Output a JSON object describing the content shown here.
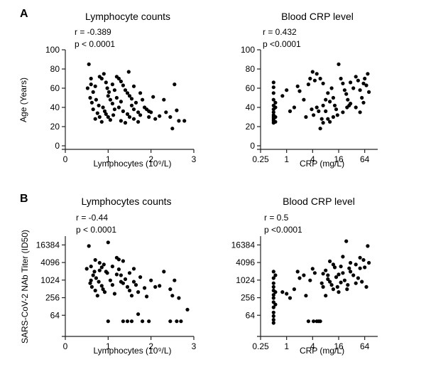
{
  "panels": {
    "A": {
      "label": "A"
    },
    "B": {
      "label": "B"
    }
  },
  "chart_data": [
    {
      "id": "A-left",
      "panel": "A",
      "type": "scatter",
      "title": "Lymphocyte counts",
      "xlabel": "Lymphocytes (10⁹/L)",
      "ylabel": "Age (Years)",
      "xscale": "linear",
      "yscale": "linear",
      "xlim": [
        0,
        3
      ],
      "ylim": [
        0,
        100
      ],
      "xticks": [
        0,
        1,
        2,
        3
      ],
      "xticklabels": [
        "0",
        "1",
        "2",
        "3"
      ],
      "yticks": [
        0,
        20,
        40,
        60,
        80,
        100
      ],
      "yticklabels": [
        "0",
        "20",
        "40",
        "60",
        "80",
        "100"
      ],
      "stats": {
        "r": "r = -0.389",
        "p": "p < 0.0001"
      },
      "points": [
        [
          0.55,
          85
        ],
        [
          0.52,
          60
        ],
        [
          0.6,
          64
        ],
        [
          0.65,
          56
        ],
        [
          0.7,
          62
        ],
        [
          0.58,
          50
        ],
        [
          0.62,
          45
        ],
        [
          0.72,
          48
        ],
        [
          0.78,
          42
        ],
        [
          0.8,
          72
        ],
        [
          0.85,
          70
        ],
        [
          0.9,
          75
        ],
        [
          0.95,
          66
        ],
        [
          0.98,
          60
        ],
        [
          1.02,
          56
        ],
        [
          1.05,
          48
        ],
        [
          0.88,
          40
        ],
        [
          0.92,
          36
        ],
        [
          1.1,
          44
        ],
        [
          1.15,
          38
        ],
        [
          0.75,
          34
        ],
        [
          0.7,
          28
        ],
        [
          0.8,
          30
        ],
        [
          0.85,
          25
        ],
        [
          0.95,
          33
        ],
        [
          1.0,
          30
        ],
        [
          1.05,
          27
        ],
        [
          1.12,
          32
        ],
        [
          1.2,
          72
        ],
        [
          1.25,
          70
        ],
        [
          1.3,
          67
        ],
        [
          1.35,
          63
        ],
        [
          1.4,
          58
        ],
        [
          1.45,
          55
        ],
        [
          1.5,
          52
        ],
        [
          1.55,
          49
        ],
        [
          1.25,
          40
        ],
        [
          1.35,
          36
        ],
        [
          1.45,
          33
        ],
        [
          1.5,
          30
        ],
        [
          1.55,
          42
        ],
        [
          1.6,
          38
        ],
        [
          1.65,
          45
        ],
        [
          1.7,
          35
        ],
        [
          1.75,
          32
        ],
        [
          1.85,
          40
        ],
        [
          1.9,
          38
        ],
        [
          1.95,
          30
        ],
        [
          2.05,
          51
        ],
        [
          2.1,
          28
        ],
        [
          2.3,
          48
        ],
        [
          2.35,
          35
        ],
        [
          2.5,
          18
        ],
        [
          2.45,
          30
        ],
        [
          2.55,
          64
        ],
        [
          2.6,
          37
        ],
        [
          2.65,
          26
        ],
        [
          2.78,
          26
        ],
        [
          1.48,
          77
        ],
        [
          1.3,
          46
        ],
        [
          1.6,
          62
        ],
        [
          1.75,
          55
        ],
        [
          1.8,
          48
        ],
        [
          1.95,
          36
        ],
        [
          2.0,
          35
        ],
        [
          0.6,
          70
        ],
        [
          0.65,
          38
        ],
        [
          1.0,
          52
        ],
        [
          1.1,
          64
        ],
        [
          1.15,
          58
        ],
        [
          1.2,
          50
        ],
        [
          1.3,
          26
        ],
        [
          1.4,
          24
        ],
        [
          1.6,
          28
        ],
        [
          1.7,
          25
        ],
        [
          2.2,
          31
        ]
      ]
    },
    {
      "id": "A-right",
      "panel": "A",
      "type": "scatter",
      "title": "Blood CRP level",
      "xlabel": "CRP (mg/L)",
      "ylabel": "",
      "xscale": "log2",
      "yscale": "linear",
      "xlim": [
        0.25,
        128
      ],
      "ylim": [
        0,
        100
      ],
      "xticks": [
        0.25,
        1,
        4,
        16,
        64
      ],
      "xticklabels": [
        "0.25",
        "1",
        "4",
        "16",
        "64"
      ],
      "yticks": [
        0,
        20,
        40,
        60,
        80,
        100
      ],
      "yticklabels": [
        "0",
        "20",
        "40",
        "60",
        "80",
        "100"
      ],
      "stats": {
        "r": "r = 0.432",
        "p": "p <0.0001"
      },
      "points": [
        [
          0.5,
          66
        ],
        [
          0.5,
          61
        ],
        [
          0.5,
          55
        ],
        [
          0.5,
          48
        ],
        [
          0.5,
          42
        ],
        [
          0.5,
          38
        ],
        [
          0.5,
          35
        ],
        [
          0.5,
          32
        ],
        [
          0.5,
          30
        ],
        [
          0.5,
          28
        ],
        [
          0.5,
          26
        ],
        [
          0.5,
          24
        ],
        [
          0.55,
          45
        ],
        [
          0.55,
          40
        ],
        [
          0.55,
          30
        ],
        [
          0.55,
          25
        ],
        [
          0.8,
          52
        ],
        [
          1.0,
          58
        ],
        [
          1.2,
          36
        ],
        [
          1.5,
          40
        ],
        [
          1.8,
          62
        ],
        [
          2.0,
          57
        ],
        [
          2.5,
          48
        ],
        [
          2.8,
          30
        ],
        [
          3.2,
          64
        ],
        [
          3.5,
          70
        ],
        [
          4.0,
          77
        ],
        [
          4.5,
          68
        ],
        [
          5.0,
          75
        ],
        [
          6.0,
          70
        ],
        [
          7.0,
          65
        ],
        [
          3.8,
          38
        ],
        [
          4.2,
          32
        ],
        [
          5.0,
          40
        ],
        [
          5.5,
          36
        ],
        [
          6.0,
          18
        ],
        [
          6.5,
          28
        ],
        [
          7.0,
          42
        ],
        [
          8.0,
          48
        ],
        [
          9.0,
          55
        ],
        [
          10,
          46
        ],
        [
          11,
          60
        ],
        [
          12,
          50
        ],
        [
          13,
          42
        ],
        [
          14,
          38
        ],
        [
          15,
          32
        ],
        [
          16,
          85
        ],
        [
          18,
          70
        ],
        [
          20,
          65
        ],
        [
          22,
          58
        ],
        [
          24,
          54
        ],
        [
          26,
          48
        ],
        [
          28,
          42
        ],
        [
          30,
          66
        ],
        [
          35,
          60
        ],
        [
          40,
          72
        ],
        [
          45,
          68
        ],
        [
          50,
          58
        ],
        [
          55,
          50
        ],
        [
          60,
          45
        ],
        [
          64,
          70
        ],
        [
          70,
          63
        ],
        [
          75,
          75
        ],
        [
          80,
          56
        ],
        [
          20,
          35
        ],
        [
          25,
          40
        ],
        [
          12,
          30
        ],
        [
          10,
          25
        ],
        [
          30,
          44
        ],
        [
          40,
          40
        ],
        [
          50,
          35
        ],
        [
          60,
          65
        ],
        [
          8,
          36
        ],
        [
          9,
          28
        ],
        [
          7,
          24
        ]
      ]
    },
    {
      "id": "B-left",
      "panel": "B",
      "type": "scatter",
      "title": "Lymphocytes counts",
      "xlabel": "Lymphocytes (10⁹/L)",
      "ylabel": "SARS-CoV-2 NAb Titer (ID50)",
      "xscale": "linear",
      "yscale": "log2",
      "xlim": [
        0,
        3
      ],
      "ylim": [
        16,
        32768
      ],
      "xticks": [
        0,
        1,
        2,
        3
      ],
      "xticklabels": [
        "0",
        "1",
        "2",
        "3"
      ],
      "yticks": [
        64,
        256,
        1024,
        4096,
        16384
      ],
      "yticklabels": [
        "64",
        "256",
        "1024",
        "4096",
        "16384"
      ],
      "stats": {
        "r": "r = -0.44",
        "p": "p < 0.0001"
      },
      "points": [
        [
          0.55,
          15000
        ],
        [
          0.5,
          2500
        ],
        [
          0.6,
          3000
        ],
        [
          0.65,
          1500
        ],
        [
          0.7,
          5000
        ],
        [
          0.58,
          800
        ],
        [
          0.62,
          600
        ],
        [
          0.72,
          1200
        ],
        [
          0.78,
          900
        ],
        [
          0.8,
          4000
        ],
        [
          0.85,
          2800
        ],
        [
          0.9,
          3500
        ],
        [
          0.95,
          2000
        ],
        [
          0.98,
          1800
        ],
        [
          1.0,
          20000
        ],
        [
          1.05,
          1000
        ],
        [
          0.88,
          500
        ],
        [
          0.92,
          400
        ],
        [
          1.1,
          700
        ],
        [
          1.15,
          350
        ],
        [
          0.75,
          300
        ],
        [
          0.7,
          450
        ],
        [
          0.8,
          2200
        ],
        [
          0.85,
          650
        ],
        [
          1.2,
          6000
        ],
        [
          1.25,
          2400
        ],
        [
          1.3,
          1500
        ],
        [
          1.35,
          800
        ],
        [
          1.4,
          1100
        ],
        [
          1.45,
          600
        ],
        [
          1.5,
          450
        ],
        [
          1.55,
          300
        ],
        [
          1.25,
          5200
        ],
        [
          1.35,
          4600
        ],
        [
          1.5,
          1800
        ],
        [
          1.6,
          900
        ],
        [
          1.65,
          700
        ],
        [
          1.7,
          400
        ],
        [
          1.75,
          1300
        ],
        [
          1.85,
          550
        ],
        [
          1.9,
          280
        ],
        [
          2.0,
          1000
        ],
        [
          2.1,
          600
        ],
        [
          2.2,
          650
        ],
        [
          2.3,
          2000
        ],
        [
          2.45,
          500
        ],
        [
          2.55,
          1000
        ],
        [
          2.65,
          250
        ],
        [
          2.85,
          100
        ],
        [
          1.0,
          40
        ],
        [
          1.35,
          40
        ],
        [
          1.45,
          40
        ],
        [
          1.55,
          40
        ],
        [
          1.8,
          40
        ],
        [
          1.95,
          40
        ],
        [
          2.45,
          40
        ],
        [
          2.6,
          40
        ],
        [
          2.7,
          40
        ],
        [
          1.7,
          70
        ],
        [
          2.5,
          300
        ],
        [
          0.6,
          1000
        ],
        [
          0.68,
          2000
        ],
        [
          1.1,
          3000
        ],
        [
          1.2,
          1600
        ],
        [
          1.3,
          900
        ],
        [
          1.6,
          2500
        ]
      ]
    },
    {
      "id": "B-right",
      "panel": "B",
      "type": "scatter",
      "title": "Blood CRP level",
      "xlabel": "CRP (mg/L)",
      "ylabel": "",
      "xscale": "log2",
      "yscale": "log2",
      "xlim": [
        0.25,
        128
      ],
      "ylim": [
        16,
        32768
      ],
      "xticks": [
        0.25,
        1,
        4,
        16,
        64
      ],
      "xticklabels": [
        "0.25",
        "1",
        "4",
        "16",
        "64"
      ],
      "yticks": [
        64,
        256,
        1024,
        4096,
        16384
      ],
      "yticklabels": [
        "64",
        "256",
        "1024",
        "4096",
        "16384"
      ],
      "stats": {
        "r": "r = 0.5",
        "p": "p <0.0001"
      },
      "points": [
        [
          0.5,
          2000
        ],
        [
          0.5,
          1200
        ],
        [
          0.5,
          800
        ],
        [
          0.5,
          600
        ],
        [
          0.5,
          450
        ],
        [
          0.5,
          320
        ],
        [
          0.5,
          250
        ],
        [
          0.5,
          180
        ],
        [
          0.5,
          120
        ],
        [
          0.5,
          80
        ],
        [
          0.5,
          60
        ],
        [
          0.5,
          45
        ],
        [
          0.5,
          35
        ],
        [
          0.55,
          1500
        ],
        [
          0.55,
          400
        ],
        [
          0.55,
          150
        ],
        [
          0.8,
          400
        ],
        [
          1.0,
          350
        ],
        [
          1.2,
          250
        ],
        [
          1.5,
          500
        ],
        [
          1.8,
          2000
        ],
        [
          2.0,
          1200
        ],
        [
          2.5,
          1500
        ],
        [
          2.8,
          300
        ],
        [
          3.2,
          40
        ],
        [
          3.5,
          1000
        ],
        [
          4.0,
          2500
        ],
        [
          4.5,
          1800
        ],
        [
          5.0,
          40
        ],
        [
          5.5,
          40
        ],
        [
          6.0,
          40
        ],
        [
          4.2,
          40
        ],
        [
          6.5,
          800
        ],
        [
          7.0,
          600
        ],
        [
          8.0,
          2200
        ],
        [
          9.0,
          1500
        ],
        [
          10,
          900
        ],
        [
          11,
          700
        ],
        [
          12,
          500
        ],
        [
          13,
          2800
        ],
        [
          14,
          1300
        ],
        [
          15,
          600
        ],
        [
          16,
          400
        ],
        [
          18,
          3000
        ],
        [
          20,
          1800
        ],
        [
          22,
          1000
        ],
        [
          24,
          22000
        ],
        [
          26,
          700
        ],
        [
          28,
          2600
        ],
        [
          30,
          2000
        ],
        [
          35,
          1500
        ],
        [
          40,
          3500
        ],
        [
          45,
          1200
        ],
        [
          50,
          6000
        ],
        [
          55,
          900
        ],
        [
          60,
          5000
        ],
        [
          64,
          2800
        ],
        [
          70,
          600
        ],
        [
          75,
          15000
        ],
        [
          80,
          4000
        ],
        [
          20,
          6500
        ],
        [
          25,
          500
        ],
        [
          12,
          3500
        ],
        [
          10,
          4500
        ],
        [
          30,
          4000
        ],
        [
          40,
          800
        ],
        [
          50,
          2600
        ],
        [
          8,
          300
        ],
        [
          9,
          1100
        ],
        [
          7,
          1700
        ],
        [
          16,
          1600
        ],
        [
          18,
          850
        ]
      ]
    }
  ]
}
